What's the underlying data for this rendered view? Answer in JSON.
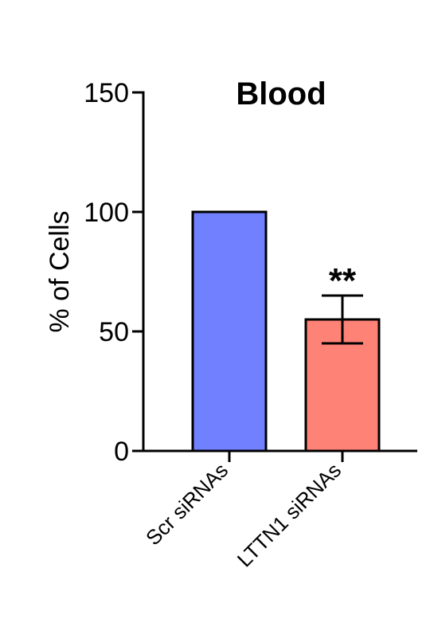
{
  "chart_data": {
    "type": "bar",
    "title": "Blood",
    "xlabel": "",
    "ylabel": "% of Cells",
    "ylim": [
      0,
      150
    ],
    "yticks": [
      0,
      50,
      100,
      150
    ],
    "categories": [
      "Scr siRNAs",
      "LTTN1 siRNAs"
    ],
    "values": [
      100,
      55
    ],
    "error": [
      0,
      10
    ],
    "annotations": [
      "",
      "**"
    ],
    "colors": [
      "#7080FF",
      "#FF8277"
    ],
    "grid": false,
    "legend": "none"
  }
}
